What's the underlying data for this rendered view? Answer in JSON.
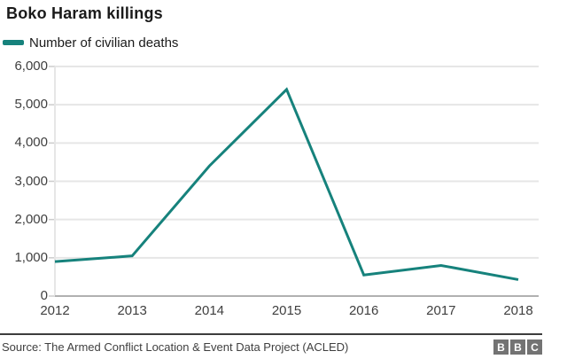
{
  "title": "Boko Haram killings",
  "legend": {
    "label": "Number of civilian deaths",
    "color": "#16827c"
  },
  "chart_data": {
    "type": "line",
    "title": "Boko Haram killings",
    "series": [
      {
        "name": "Number of civilian deaths",
        "values": [
          900,
          1050,
          3400,
          5400,
          550,
          800,
          430
        ]
      }
    ],
    "categories": [
      "2012",
      "2013",
      "2014",
      "2015",
      "2016",
      "2017",
      "2018"
    ],
    "xlabel": "",
    "ylabel": "",
    "ylim": [
      0,
      6000
    ],
    "ytick_step": 1000,
    "ytick_labels": [
      "0",
      "1,000",
      "2,000",
      "3,000",
      "4,000",
      "5,000",
      "6,000"
    ],
    "grid": true,
    "legend_position": "top-left",
    "line_color": "#16827c"
  },
  "footer": {
    "source": "Source: The Armed Conflict Location & Event Data Project (ACLED)",
    "logo_letters": [
      "B",
      "B",
      "C"
    ]
  },
  "colors": {
    "accent": "#16827c",
    "gridline": "#e6e6e6",
    "axis_line": "#b1b1b1",
    "tick": "#cccccc",
    "axis_text": "#404040",
    "logo_gray": "#737373"
  }
}
